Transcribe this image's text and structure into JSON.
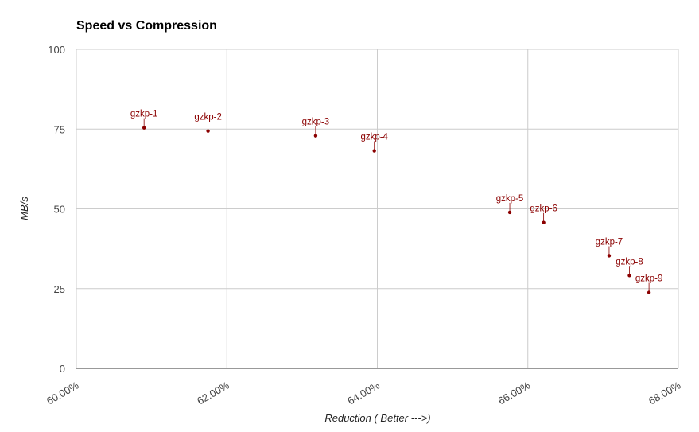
{
  "chart_data": {
    "type": "scatter",
    "title": "Speed vs Compression",
    "xlabel": "Reduction ( Better --->)",
    "ylabel": "MB/s",
    "xlim": [
      60,
      68
    ],
    "ylim": [
      0,
      100
    ],
    "x_ticks": [
      60,
      62,
      64,
      66,
      68
    ],
    "x_tick_labels": [
      "60.00%",
      "62.00%",
      "64.00%",
      "66.00%",
      "68.00%"
    ],
    "y_ticks": [
      0,
      25,
      50,
      75,
      100
    ],
    "y_tick_labels": [
      "0",
      "25",
      "50",
      "75",
      "100"
    ],
    "grid": true,
    "legend": "none",
    "color": "#8b0000",
    "points": [
      {
        "label": "gzkp-1",
        "x": 60.9,
        "y": 75.4
      },
      {
        "label": "gzkp-2",
        "x": 61.75,
        "y": 74.4
      },
      {
        "label": "gzkp-3",
        "x": 63.18,
        "y": 72.9
      },
      {
        "label": "gzkp-4",
        "x": 63.96,
        "y": 68.2
      },
      {
        "label": "gzkp-5",
        "x": 65.76,
        "y": 48.9
      },
      {
        "label": "gzkp-6",
        "x": 66.21,
        "y": 45.7
      },
      {
        "label": "gzkp-7",
        "x": 67.08,
        "y": 35.3
      },
      {
        "label": "gzkp-8",
        "x": 67.35,
        "y": 29.1
      },
      {
        "label": "gzkp-9",
        "x": 67.61,
        "y": 23.8
      }
    ]
  }
}
